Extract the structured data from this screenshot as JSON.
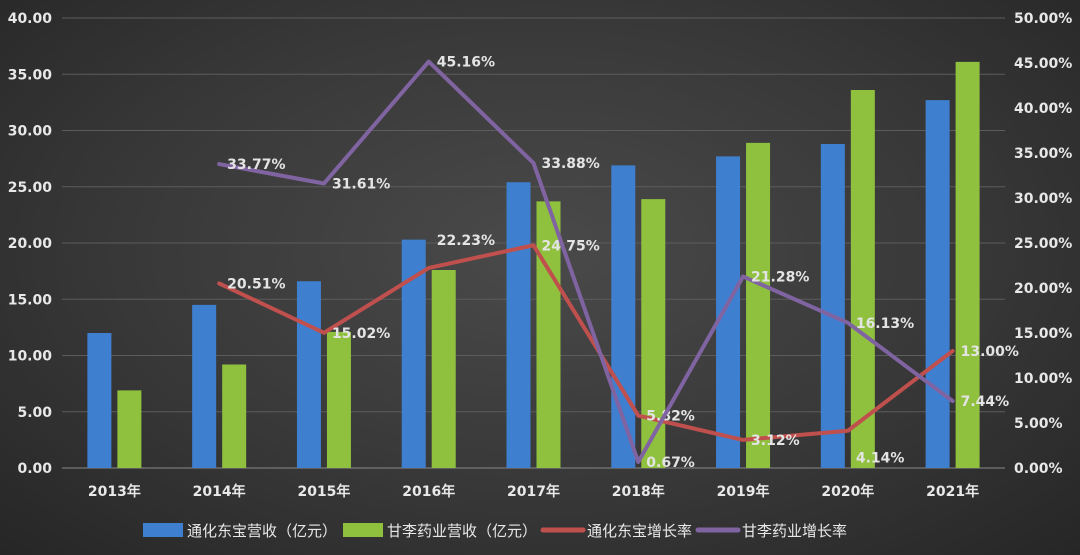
{
  "chart_data": {
    "type": "bar+line",
    "categories": [
      "2013年",
      "2014年",
      "2015年",
      "2016年",
      "2017年",
      "2018年",
      "2019年",
      "2020年",
      "2021年"
    ],
    "y_left": {
      "range": [
        0,
        40
      ],
      "ticks": [
        "0.00",
        "5.00",
        "10.00",
        "15.00",
        "20.00",
        "25.00",
        "30.00",
        "35.00",
        "40.00"
      ]
    },
    "y_right": {
      "range": [
        0,
        0.5
      ],
      "ticks": [
        "0.00%",
        "5.00%",
        "10.00%",
        "15.00%",
        "20.00%",
        "25.00%",
        "30.00%",
        "35.00%",
        "40.00%",
        "45.00%",
        "50.00%"
      ]
    },
    "grid": true,
    "legend_position": "bottom",
    "series": [
      {
        "name": "通化东宝营收（亿元）",
        "type": "bar",
        "axis": "left",
        "color": "#3f7fd0",
        "values": [
          12.0,
          14.5,
          16.6,
          20.3,
          25.4,
          26.9,
          27.7,
          28.8,
          32.7
        ]
      },
      {
        "name": "甘李药业营收（亿元）",
        "type": "bar",
        "axis": "left",
        "color": "#8fc13f",
        "values": [
          6.9,
          9.2,
          12.1,
          17.6,
          23.7,
          23.9,
          28.9,
          33.6,
          36.1
        ]
      },
      {
        "name": "通化东宝增长率",
        "type": "line",
        "axis": "right",
        "color": "#c0504d",
        "values": [
          null,
          0.2051,
          0.1502,
          0.2223,
          0.2475,
          0.0582,
          0.0312,
          0.0414,
          0.13
        ],
        "labels": [
          null,
          "20.51%",
          "15.02%",
          "22.23%",
          "24.75%",
          "5.82%",
          "3.12%",
          "4.14%",
          "13.00%"
        ]
      },
      {
        "name": "甘李药业增长率",
        "type": "line",
        "axis": "right",
        "color": "#8064a2",
        "values": [
          null,
          0.3377,
          0.3161,
          0.4516,
          0.3388,
          0.0067,
          0.2128,
          0.1613,
          0.0744
        ],
        "labels": [
          null,
          "33.77%",
          "31.61%",
          "45.16%",
          "33.88%",
          "0.67%",
          "21.28%",
          "16.13%",
          "7.44%"
        ]
      }
    ]
  }
}
